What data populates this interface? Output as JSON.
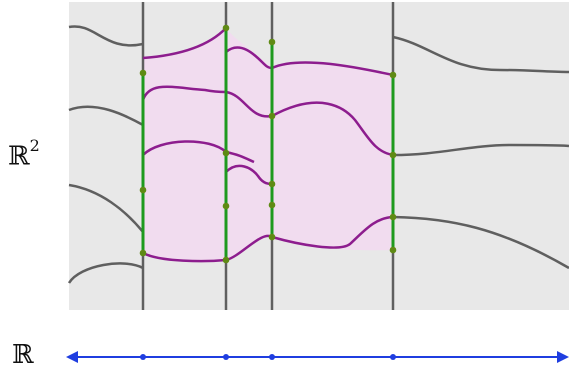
{
  "labels": {
    "plane_symbol": "ℝ",
    "plane_exponent": "2",
    "line_symbol": "ℝ"
  },
  "colors": {
    "background": "#e8e8e8",
    "region_fill": "#f1dcef",
    "gray_curve": "#5f5f5f",
    "purple_curve": "#8d1d8e",
    "green_segment": "#1e9a1e",
    "green_dot": "#5f8a14",
    "axis_blue": "#1f3ee0"
  }
}
